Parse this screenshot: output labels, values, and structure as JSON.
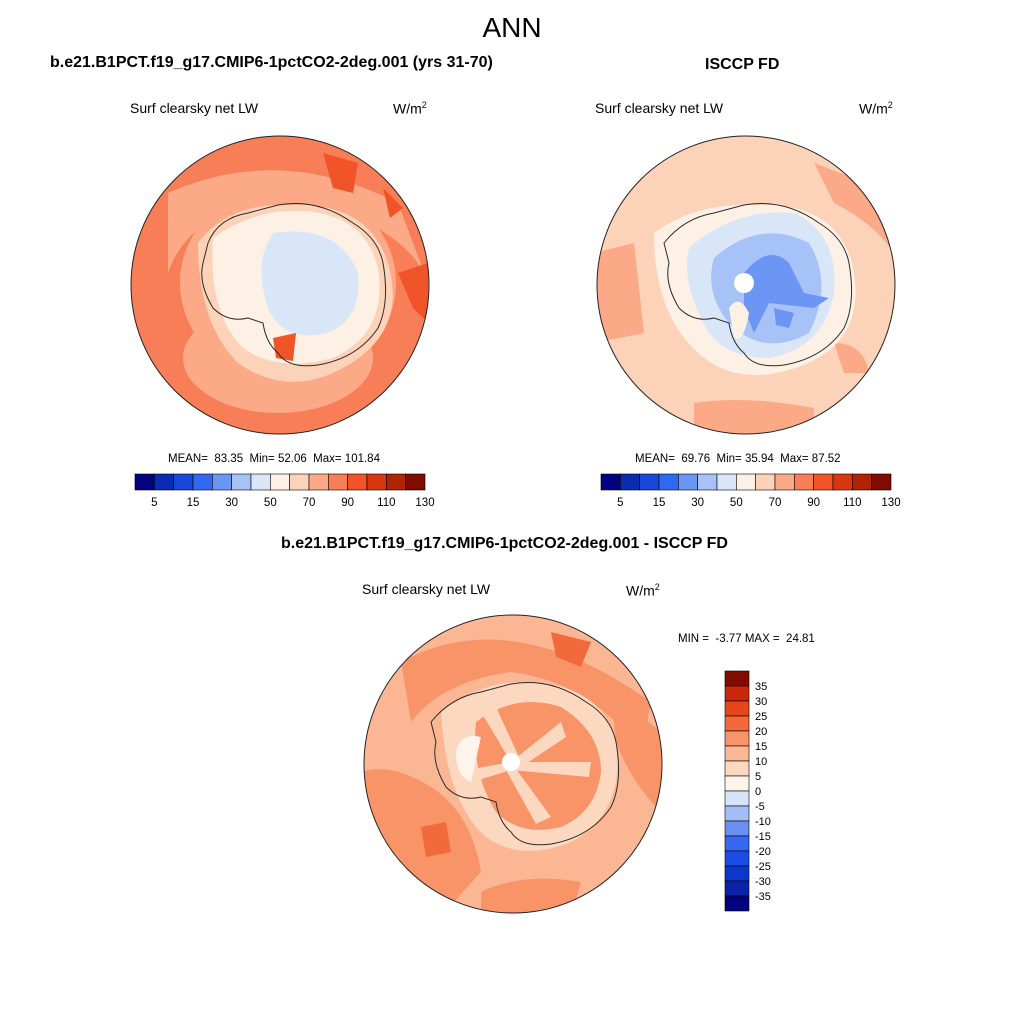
{
  "title": "ANN",
  "panels": [
    {
      "title": "b.e21.B1PCT.f19_g17.CMIP6-1pctCO2-2deg.001 (yrs 31-70)",
      "variable": "Surf clearsky net LW",
      "units_base": "W/m",
      "units_exp": "2",
      "mean_label": "MEAN=",
      "mean": "83.35",
      "min_label": "Min=",
      "min": "52.06",
      "max_label": "Max=",
      "max": "101.84"
    },
    {
      "title": "ISCCP FD",
      "variable": "Surf clearsky net LW",
      "units_base": "W/m",
      "units_exp": "2",
      "mean_label": "MEAN=",
      "mean": "69.76",
      "min_label": "Min=",
      "min": "35.94",
      "max_label": "Max=",
      "max": "87.52"
    },
    {
      "title": "b.e21.B1PCT.f19_g17.CMIP6-1pctCO2-2deg.001 - ISCCP FD",
      "variable": "Surf clearsky net LW",
      "units_base": "W/m",
      "units_exp": "2",
      "min_label": "MIN =",
      "min": "-3.77",
      "max_label": "MAX =",
      "max": "24.81"
    }
  ],
  "colorbar_abs": {
    "colors": [
      "#03037f",
      "#0b2bb0",
      "#1948d8",
      "#3068ef",
      "#6b96f3",
      "#a6c2f6",
      "#d8e6f8",
      "#fdf1e6",
      "#fcd2b8",
      "#fba987",
      "#f77e57",
      "#f05428",
      "#d8360e",
      "#b02304",
      "#800c00"
    ],
    "tick_labels": [
      "5",
      "15",
      "30",
      "50",
      "70",
      "90",
      "110",
      "130"
    ]
  },
  "colorbar_diff": {
    "colors": [
      "#03037f",
      "#0b22a6",
      "#0d36cd",
      "#1a4de8",
      "#3767f0",
      "#6a8ff2",
      "#a3bdf5",
      "#d5e4f8",
      "#fdf4ec",
      "#fcd8c1",
      "#fbb794",
      "#f89468",
      "#f26a3b",
      "#e5461a",
      "#c9290a",
      "#800c00"
    ],
    "tick_labels": [
      "35",
      "30",
      "25",
      "20",
      "15",
      "10",
      "5",
      "0",
      "-5",
      "-10",
      "-15",
      "-20",
      "-25",
      "-30",
      "-35"
    ]
  }
}
